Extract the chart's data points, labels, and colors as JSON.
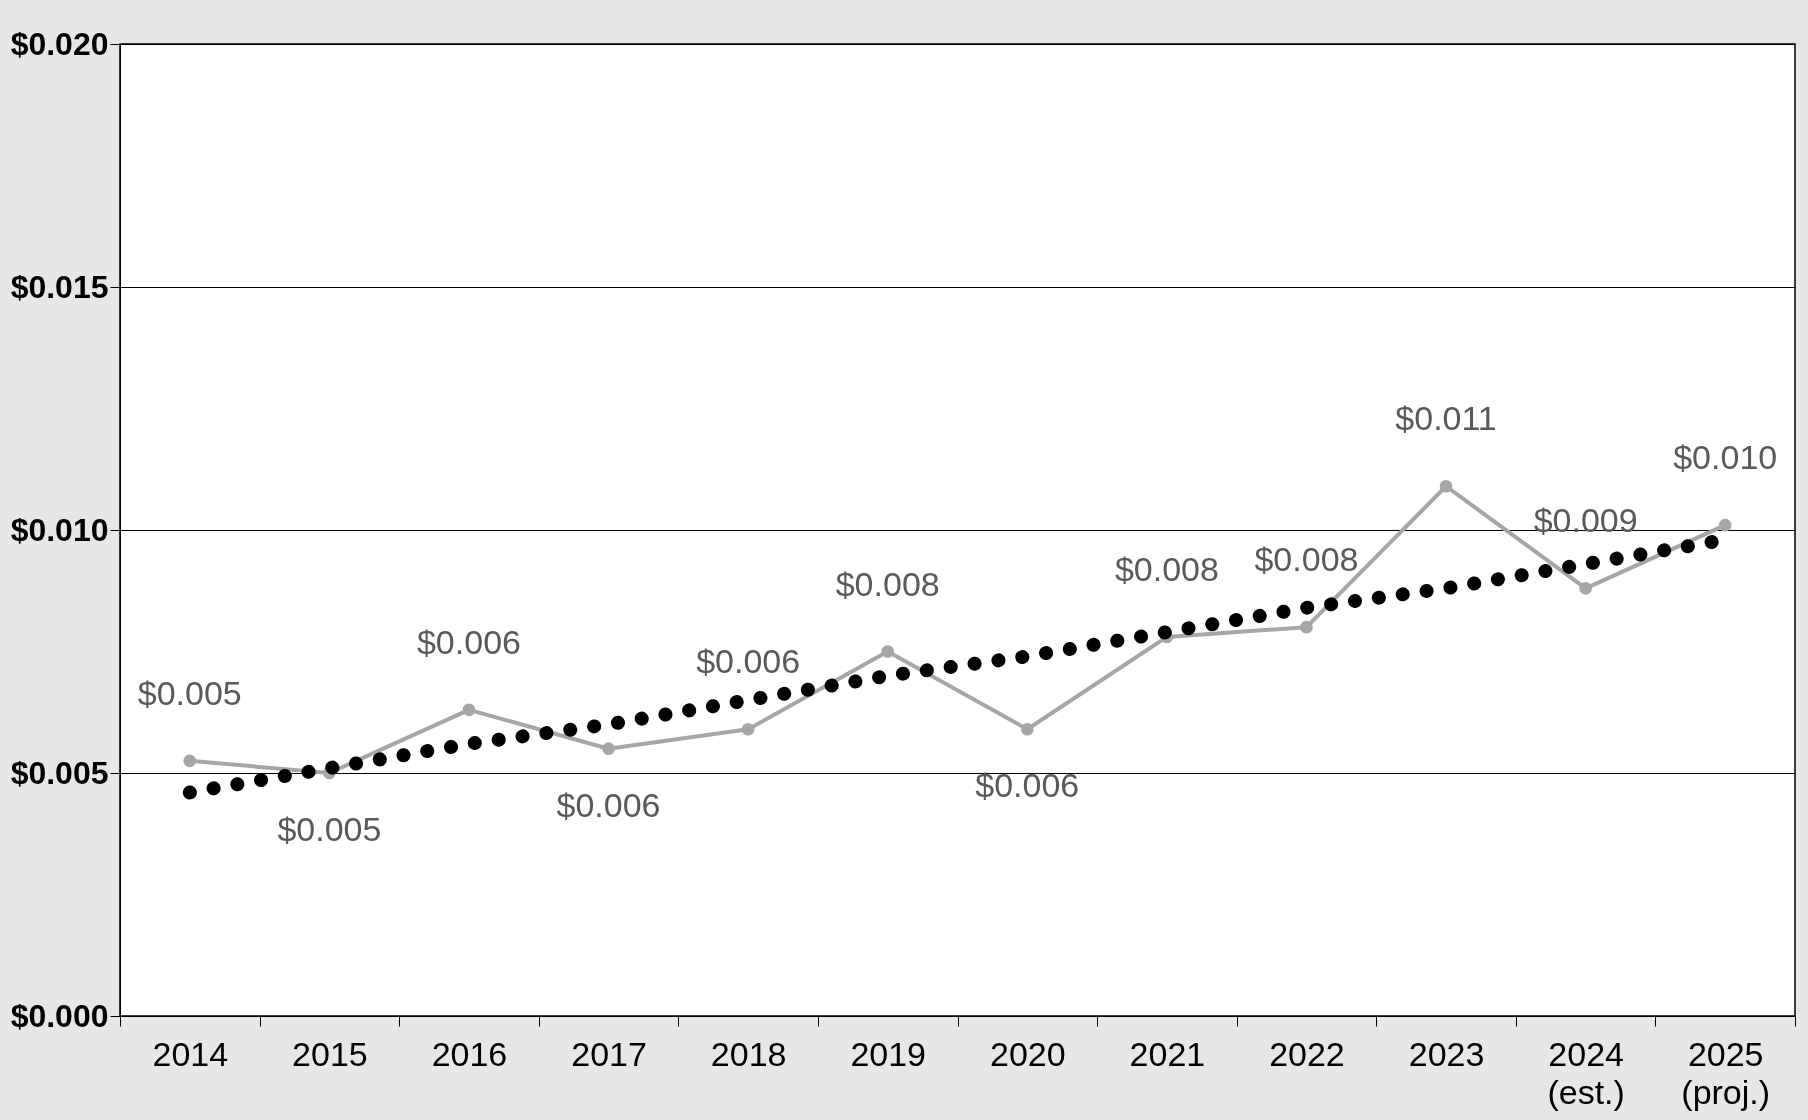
{
  "chart_data": {
    "type": "line",
    "categories": [
      "2014",
      "2015",
      "2016",
      "2017",
      "2018",
      "2019",
      "2020",
      "2021",
      "2022",
      "2023",
      "2024\n(est.)",
      "2025\n(proj.)"
    ],
    "series": [
      {
        "color": "#a6a6a6",
        "marker": "circle",
        "line_style": "solid",
        "values": [
          0.00525,
          0.005,
          0.0063,
          0.0055,
          0.0059,
          0.0075,
          0.0059,
          0.0078,
          0.008,
          0.0109,
          0.0088,
          0.0101
        ],
        "value_labels": [
          "$0.005",
          "$0.005",
          "$0.006",
          "$0.006",
          "$0.006",
          "$0.008",
          "$0.006",
          "$0.008",
          "$0.008",
          "$0.011",
          "$0.009",
          "$0.010"
        ]
      },
      {
        "color": "#000000",
        "marker": "none",
        "line_style": "dotted",
        "values": [
          0.0046,
          0.0051,
          0.0056,
          0.006,
          0.0065,
          0.007,
          0.0074,
          0.0079,
          0.0084,
          0.0088,
          0.0093,
          0.0098
        ]
      }
    ],
    "ylim": [
      0,
      0.02
    ],
    "yticks": [
      {
        "value": 0,
        "label": "$0.000"
      },
      {
        "value": 0.005,
        "label": "$0.005"
      },
      {
        "value": 0.01,
        "label": "$0.010"
      },
      {
        "value": 0.015,
        "label": "$0.015"
      },
      {
        "value": 0.02,
        "label": "$0.020"
      }
    ],
    "grid": "y",
    "legend": false
  }
}
